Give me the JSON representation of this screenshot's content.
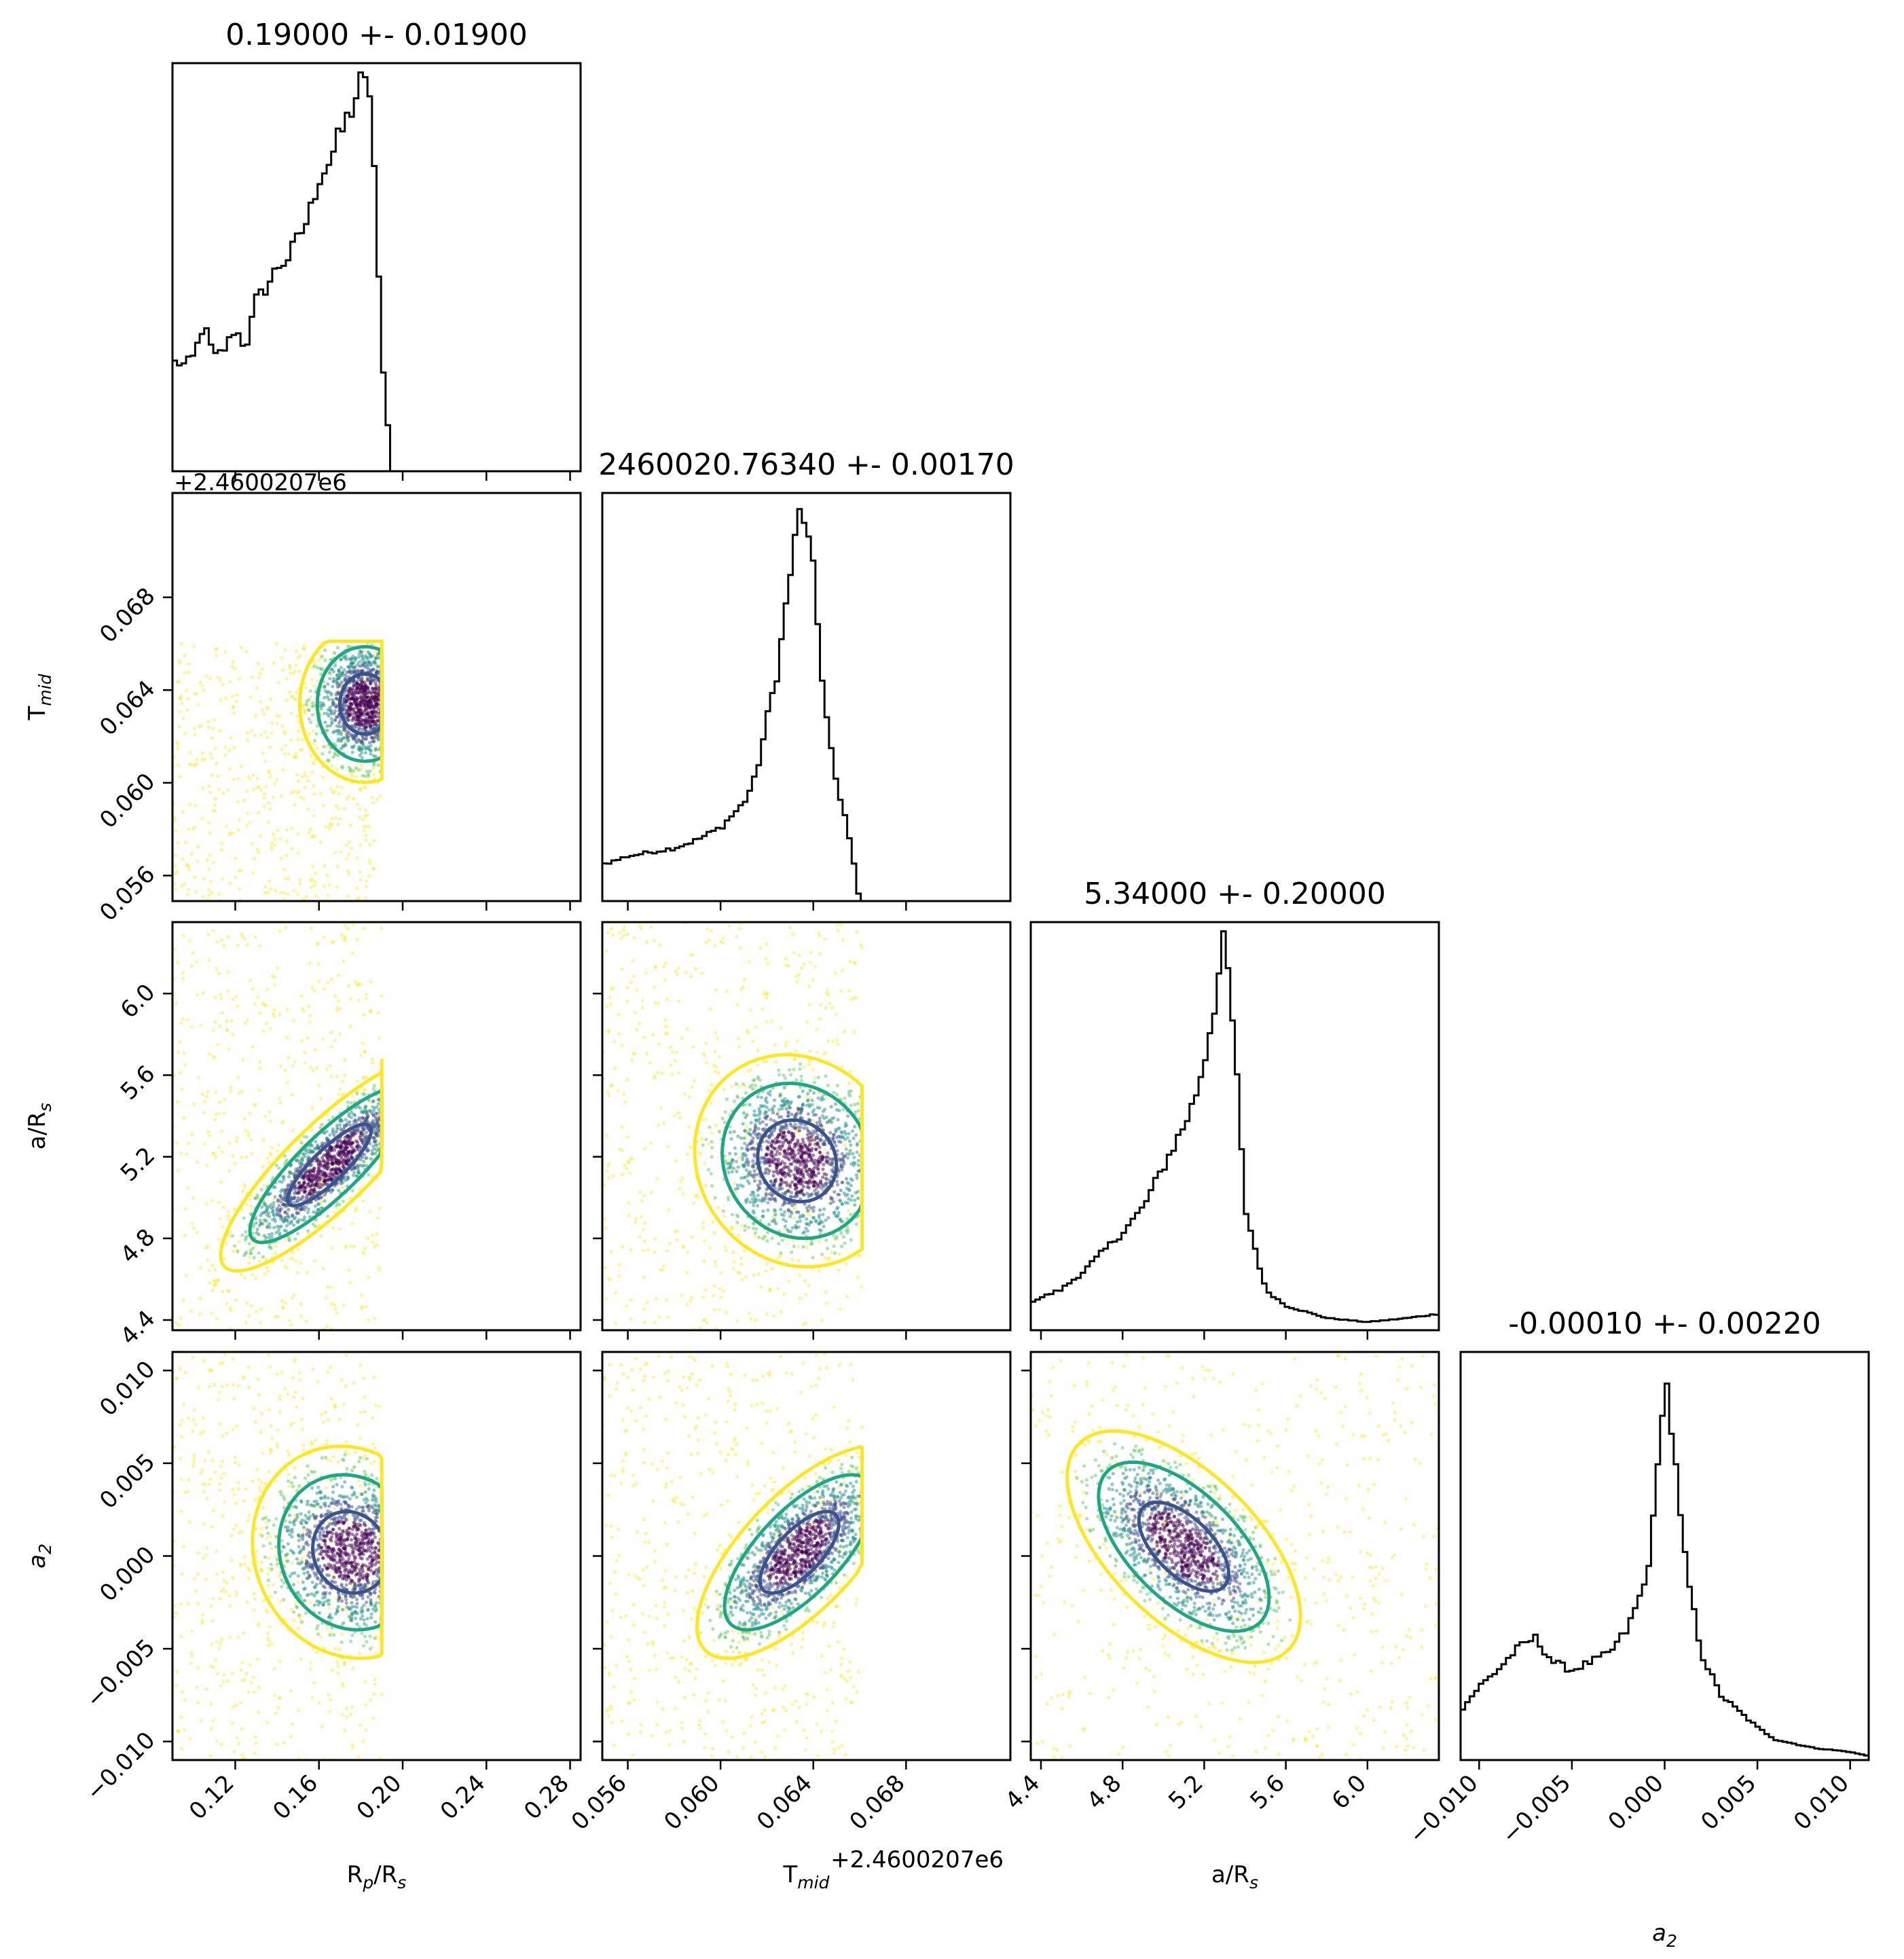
{
  "chart_data": {
    "type": "scatter",
    "title": "",
    "parameters": [
      {
        "key": "rp",
        "label": "R_p/R_s",
        "range": [
          0.09,
          0.285
        ],
        "ticks": [
          0.12,
          0.16,
          0.2,
          0.24,
          0.28
        ],
        "tick_labels": [
          "0.12",
          "0.16",
          "0.20",
          "0.24",
          "0.28"
        ],
        "sample_range": [
          0.09,
          0.19
        ]
      },
      {
        "key": "tmid",
        "label": "T_mid",
        "range": [
          0.0549,
          0.0725
        ],
        "offset": "+2.4600207e6",
        "ticks": [
          0.056,
          0.06,
          0.064,
          0.068
        ],
        "tick_labels": [
          "0.056",
          "0.060",
          "0.064",
          "0.068"
        ],
        "sample_range": [
          0.0549,
          0.0661
        ]
      },
      {
        "key": "ars",
        "label": "a/R_s",
        "range": [
          4.35,
          6.35
        ],
        "ticks": [
          4.4,
          4.8,
          5.2,
          5.6,
          6.0
        ],
        "tick_labels": [
          "4.4",
          "4.8",
          "5.2",
          "5.6",
          "6.0"
        ],
        "sample_range": [
          4.35,
          6.35
        ]
      },
      {
        "key": "a2",
        "label": "a_2",
        "range": [
          -0.011,
          0.011
        ],
        "ticks": [
          -0.01,
          -0.005,
          0.0,
          0.005,
          0.01
        ],
        "tick_labels": [
          "−0.010",
          "−0.005",
          "0.000",
          "0.005",
          "0.010"
        ],
        "sample_range": [
          -0.011,
          0.011
        ]
      }
    ],
    "titles": [
      "0.19000 +- 0.01900",
      "2460020.76340 +- 0.00170",
      "5.34000 +- 0.20000",
      "-0.00010 +- 0.00220"
    ],
    "offset_label": "+2.4600207e6",
    "histograms": [
      {
        "x": [
          0.09,
          0.095,
          0.1,
          0.105,
          0.11,
          0.115,
          0.12,
          0.125,
          0.13,
          0.135,
          0.14,
          0.145,
          0.15,
          0.155,
          0.16,
          0.165,
          0.17,
          0.175,
          0.18,
          0.185,
          0.19,
          0.195,
          0.2,
          0.21,
          0.24,
          0.285
        ],
        "y": [
          0.27,
          0.26,
          0.28,
          0.36,
          0.28,
          0.3,
          0.35,
          0.3,
          0.42,
          0.45,
          0.5,
          0.52,
          0.57,
          0.62,
          0.72,
          0.76,
          0.82,
          0.88,
          0.95,
          0.93,
          0.28,
          0.0,
          0.0,
          0.0,
          0.0,
          0.0
        ]
      },
      {
        "x": [
          0.0549,
          0.0555,
          0.056,
          0.057,
          0.058,
          0.059,
          0.06,
          0.061,
          0.0615,
          0.062,
          0.0625,
          0.063,
          0.0635,
          0.064,
          0.0645,
          0.065,
          0.0655,
          0.066,
          0.067,
          0.068,
          0.07,
          0.0725
        ],
        "y": [
          0.09,
          0.1,
          0.11,
          0.12,
          0.13,
          0.15,
          0.18,
          0.24,
          0.3,
          0.44,
          0.58,
          0.8,
          0.98,
          0.8,
          0.48,
          0.28,
          0.18,
          0.0,
          0.0,
          0.0,
          0.0,
          0.0
        ]
      },
      {
        "x": [
          4.35,
          4.4,
          4.5,
          4.6,
          4.7,
          4.8,
          4.9,
          5.0,
          5.1,
          5.15,
          5.2,
          5.25,
          5.3,
          5.35,
          5.4,
          5.5,
          5.6,
          5.8,
          6.0,
          6.2,
          6.35
        ],
        "y": [
          0.07,
          0.08,
          0.1,
          0.14,
          0.19,
          0.24,
          0.3,
          0.4,
          0.5,
          0.56,
          0.66,
          0.8,
          0.96,
          0.7,
          0.3,
          0.1,
          0.06,
          0.03,
          0.02,
          0.03,
          0.04
        ]
      },
      {
        "x": [
          -0.011,
          -0.01,
          -0.009,
          -0.008,
          -0.007,
          -0.006,
          -0.005,
          -0.004,
          -0.003,
          -0.002,
          -0.001,
          -0.0005,
          0.0,
          0.0005,
          0.001,
          0.0015,
          0.002,
          0.003,
          0.004,
          0.005,
          0.006,
          0.008,
          0.01,
          0.011
        ],
        "y": [
          0.12,
          0.18,
          0.22,
          0.27,
          0.3,
          0.24,
          0.22,
          0.24,
          0.26,
          0.32,
          0.44,
          0.62,
          0.96,
          0.76,
          0.52,
          0.38,
          0.26,
          0.16,
          0.12,
          0.08,
          0.05,
          0.03,
          0.02,
          0.01
        ]
      }
    ],
    "contours_2d": {
      "colors": {
        "inner": "#3b528b",
        "middle": "#21a685",
        "outer": "#fde725"
      },
      "scatter_colors": [
        "#440154",
        "#3b528b",
        "#21918c",
        "#5ec962",
        "#fde725"
      ],
      "pairs": [
        {
          "x": 0,
          "y": 1,
          "center": [
            0.182,
            0.0634
          ],
          "sigma": [
            0.012,
            0.0013
          ],
          "rho": 0.0
        },
        {
          "x": 0,
          "y": 2,
          "center": [
            0.165,
            5.16
          ],
          "sigma": [
            0.02,
            0.2
          ],
          "rho": 0.85
        },
        {
          "x": 1,
          "y": 2,
          "center": [
            0.0633,
            5.18
          ],
          "sigma": [
            0.0017,
            0.2
          ],
          "rho": -0.1
        },
        {
          "x": 0,
          "y": 3,
          "center": [
            0.175,
            0.0002
          ],
          "sigma": [
            0.018,
            0.0022
          ],
          "rho": -0.1
        },
        {
          "x": 1,
          "y": 3,
          "center": [
            0.0634,
            0.0002
          ],
          "sigma": [
            0.0017,
            0.0022
          ],
          "rho": 0.7
        },
        {
          "x": 2,
          "y": 3,
          "center": [
            5.1,
            0.0005
          ],
          "sigma": [
            0.22,
            0.0024
          ],
          "rho": -0.6
        }
      ]
    },
    "grid": false,
    "legend": "none"
  }
}
